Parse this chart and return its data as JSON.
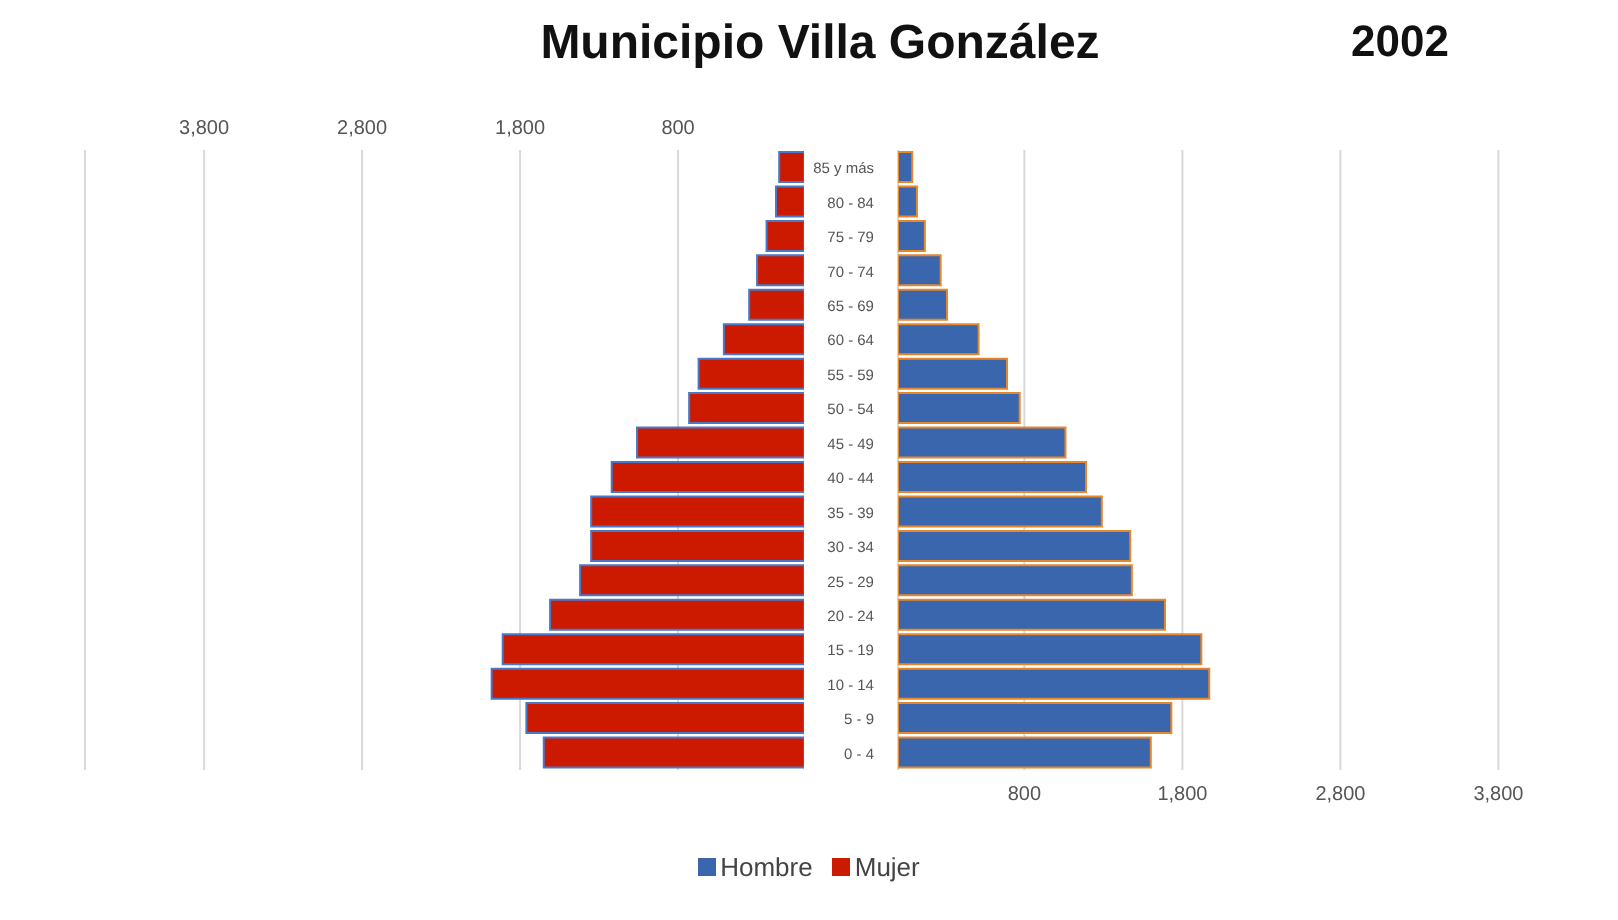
{
  "chart_data": [
    {
      "type": "bar",
      "orientation": "horizontal",
      "title": "Municipio Villa González",
      "categories": [
        null,
        null,
        null,
        null,
        null,
        null,
        null,
        null,
        null,
        null,
        null,
        null,
        null,
        null,
        null,
        null,
        null,
        null
      ],
      "series": [
        {
          "name": "Mujer",
          "color": "#cc1a00",
          "values": [
            160,
            180,
            240,
            300,
            350,
            510,
            670,
            730,
            1060,
            1220,
            1350,
            1350,
            1420,
            1610,
            1910,
            1980,
            1760,
            1650
          ]
        }
      ],
      "xlim": [
        4560,
        0
      ],
      "xticks": [
        {
          "value": 3800,
          "label": "3,800"
        },
        {
          "value": 2800,
          "label": "2,800"
        },
        {
          "value": 1800,
          "label": "1,800"
        },
        800
      ],
      "tick_labels": "x",
      "grid": "x",
      "legend": "bottom"
    },
    {
      "type": "bar",
      "orientation": "horizontal",
      "subtitle": "2002",
      "categories": [
        "85 y más",
        "80 - 84",
        "75 - 79",
        "70 - 74",
        "65 - 69",
        "60 - 64",
        "55 - 59",
        "50 - 54",
        "45 - 49",
        "40 - 44",
        "35 - 39",
        "30 - 34",
        "25 - 29",
        "20 - 24",
        "15 - 19",
        "10 - 14",
        "5 - 9",
        "0 - 4"
      ],
      "series": [
        {
          "name": "Hombre",
          "color": "#3a66ad",
          "values": [
            90,
            120,
            170,
            270,
            310,
            510,
            690,
            770,
            1060,
            1190,
            1290,
            1470,
            1480,
            1690,
            1920,
            1970,
            1730,
            1600
          ]
        }
      ],
      "xlim": [
        0,
        3800
      ],
      "xticks": [
        800,
        {
          "value": 1800,
          "label": "1,800"
        },
        {
          "value": 2800,
          "label": "2,800"
        },
        {
          "value": 3800,
          "label": "3,800"
        }
      ],
      "grid": "x",
      "legend": "bottom"
    }
  ]
}
